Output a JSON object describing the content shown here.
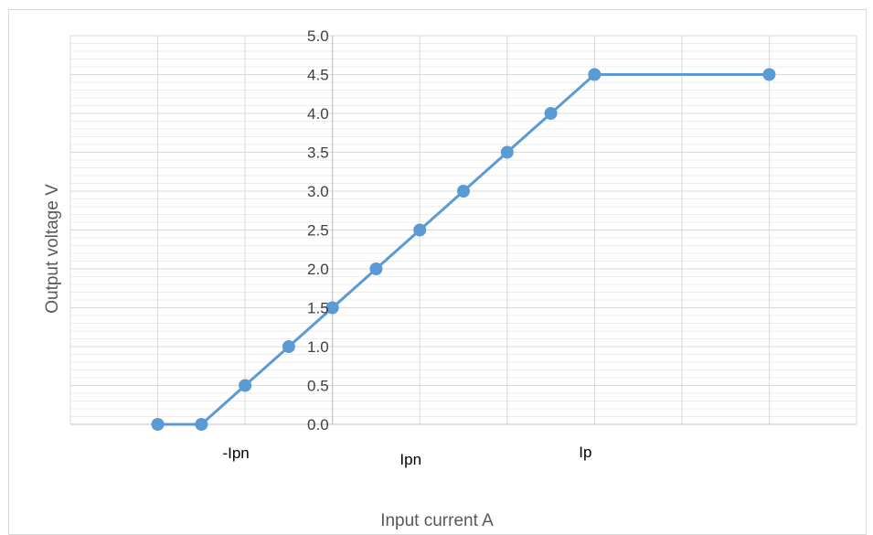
{
  "chart_data": {
    "type": "line",
    "title": "",
    "xlabel": "Input current A",
    "ylabel": "Output voltage V",
    "ylim": [
      0,
      5
    ],
    "y_major_step": 0.5,
    "y_tick_labels": [
      "0.0",
      "0.5",
      "1.0",
      "1.5",
      "2.0",
      "2.5",
      "3.0",
      "3.5",
      "4.0",
      "4.5",
      "5.0"
    ],
    "grid": true,
    "x_category_labels": [
      {
        "label": "-Ipn",
        "x": -1
      },
      {
        "label": "Ipn",
        "x": 1
      },
      {
        "label": "Ip",
        "x": 3
      }
    ],
    "x_range": [
      -3,
      6
    ],
    "series": [
      {
        "color": "#5b9bd5",
        "x": [
          -2,
          -1.5,
          -1,
          -0.5,
          0,
          0.5,
          1,
          1.5,
          2,
          2.5,
          3,
          5
        ],
        "y": [
          0,
          0,
          0.5,
          1.0,
          1.5,
          2.0,
          2.5,
          3.0,
          3.5,
          4.0,
          4.5,
          4.5
        ]
      }
    ],
    "colors": {
      "line": "#5b9bd5",
      "grid": "#d9d9d9",
      "minor_grid": "#ececec",
      "axis": "#bfbfbf"
    }
  }
}
